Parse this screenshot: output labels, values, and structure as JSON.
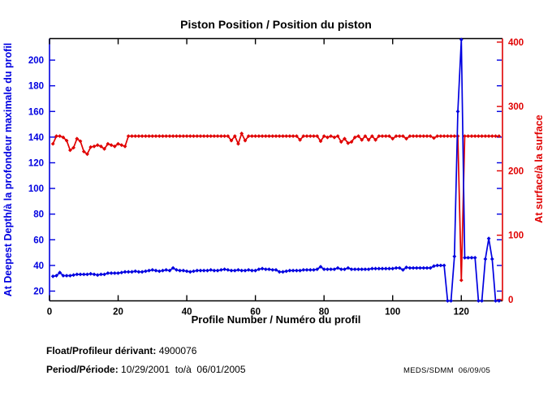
{
  "title": "Piston Position / Position du piston",
  "xlabel": "Profile Number / Numéro du profil",
  "ylabel_left": "At Deepest Depth/à la profondeur maximale du profil",
  "ylabel_right": "At surface/à la surface",
  "footer": {
    "float_label": "Float/Profileur dérivant:",
    "float_value": " 4900076",
    "period_label": "Period/Période:",
    "period_value": " 10/29/2001  to/à  06/01/2005",
    "credit": "MEDS/SDMM  06/09/05"
  },
  "colors": {
    "left_axis": "#0000e0",
    "right_axis": "#e00000",
    "frame": "#000000",
    "background": "#ffffff"
  },
  "chart_data": {
    "type": "line",
    "x_start": 1,
    "xlim": [
      0,
      132
    ],
    "xticks": [
      0,
      20,
      40,
      60,
      80,
      100,
      120
    ],
    "ylim_left": [
      12.4,
      216.8
    ],
    "yticks_left": [
      20,
      40,
      60,
      80,
      100,
      120,
      140,
      160,
      180,
      200
    ],
    "ylim_right": [
      -2,
      405.5
    ],
    "yticks_right": [
      0,
      100,
      200,
      300,
      400
    ],
    "marker": "diamond",
    "series": [
      {
        "name": "At Deepest Depth/à la profondeur maximale du profil",
        "axis": "left",
        "color": "#0000e0",
        "values": [
          31.5,
          32,
          34.5,
          32,
          32,
          32,
          32.5,
          33,
          33,
          33,
          33,
          33.5,
          33,
          32.5,
          33,
          33,
          34,
          34,
          34,
          34,
          34.5,
          35,
          35,
          35,
          35.5,
          35,
          35,
          35.5,
          36,
          36.5,
          36,
          35.5,
          36,
          36.5,
          36,
          38,
          36.5,
          36,
          36,
          35.5,
          35,
          35.5,
          36,
          36,
          36,
          36,
          36.5,
          36,
          36,
          36.5,
          37,
          36.5,
          36,
          36,
          36.5,
          36,
          36,
          36.5,
          36,
          36,
          37,
          37.5,
          37,
          37,
          36.5,
          36.5,
          35,
          35,
          35.5,
          36,
          36,
          36,
          36,
          36.5,
          36.5,
          36.5,
          36.5,
          37,
          39,
          37,
          37,
          37,
          37,
          38,
          37,
          37,
          38,
          37,
          37,
          37,
          37,
          37,
          37,
          37.5,
          37.5,
          37.5,
          37.5,
          37.5,
          37.5,
          37.5,
          38,
          38,
          36.5,
          38.5,
          38,
          38,
          38,
          38,
          38,
          38,
          38,
          39.5,
          40,
          40,
          40,
          0,
          0,
          47,
          160,
          216,
          46,
          46,
          46,
          46,
          0,
          0,
          45,
          61,
          45,
          0,
          0
        ]
      },
      {
        "name": "At surface/à la surface",
        "axis": "right",
        "color": "#e00000",
        "values": [
          242,
          254,
          254,
          252,
          247,
          232,
          236,
          250,
          246,
          230,
          226,
          237,
          238,
          240,
          238,
          234,
          242,
          240,
          238,
          242,
          240,
          238,
          254,
          254,
          254,
          254,
          254,
          254,
          254,
          254,
          254,
          254,
          254,
          254,
          254,
          254,
          254,
          254,
          254,
          254,
          254,
          254,
          254,
          254,
          254,
          254,
          254,
          254,
          254,
          254,
          254,
          254,
          247,
          254,
          242,
          258,
          247,
          254,
          254,
          254,
          254,
          254,
          254,
          254,
          254,
          254,
          254,
          254,
          254,
          254,
          254,
          254,
          248,
          254,
          254,
          254,
          254,
          254,
          246,
          254,
          252,
          254,
          252,
          254,
          245,
          250,
          243,
          245,
          252,
          254,
          248,
          254,
          248,
          254,
          248,
          254,
          254,
          254,
          254,
          250,
          254,
          254,
          254,
          250,
          254,
          254,
          254,
          254,
          254,
          254,
          254,
          251,
          254,
          254,
          254,
          254,
          254,
          254,
          254,
          30,
          254,
          254,
          254,
          254,
          254,
          254,
          254,
          254,
          254,
          254,
          254
        ]
      }
    ]
  }
}
